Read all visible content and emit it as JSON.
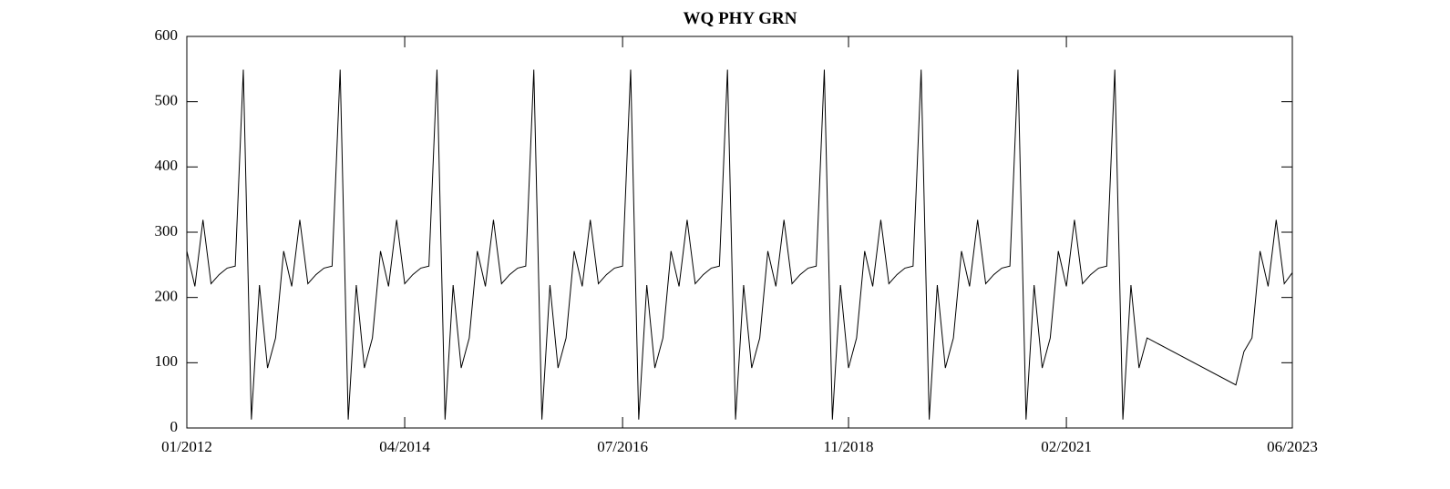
{
  "chart_data": {
    "type": "line",
    "title": "WQ PHY GRN",
    "x": [
      "2012-01",
      "2012-01",
      "2012-02",
      "2012-03",
      "2012-04",
      "2012-05",
      "2012-06",
      "2012-07",
      "2012-08",
      "2012-09",
      "2012-10",
      "2012-11",
      "2012-12",
      "2013-01",
      "2013-02",
      "2013-03",
      "2013-04",
      "2013-05",
      "2013-06",
      "2013-07",
      "2013-08",
      "2013-09",
      "2013-10",
      "2013-11",
      "2013-12",
      "2014-01",
      "2014-02",
      "2014-03",
      "2014-04",
      "2014-05",
      "2014-06",
      "2014-07",
      "2014-08",
      "2014-09",
      "2014-10",
      "2014-11",
      "2014-12",
      "2015-01",
      "2015-02",
      "2015-03",
      "2015-04",
      "2015-05",
      "2015-06",
      "2015-07",
      "2015-08",
      "2015-09",
      "2015-10",
      "2015-11",
      "2015-12",
      "2016-01",
      "2016-02",
      "2016-03",
      "2016-04",
      "2016-05",
      "2016-06",
      "2016-07",
      "2016-08",
      "2016-09",
      "2016-10",
      "2016-11",
      "2016-12",
      "2017-01",
      "2017-02",
      "2017-03",
      "2017-04",
      "2017-05",
      "2017-06",
      "2017-07",
      "2017-08",
      "2017-09",
      "2017-10",
      "2017-11",
      "2017-12",
      "2018-01",
      "2018-02",
      "2018-03",
      "2018-04",
      "2018-05",
      "2018-06",
      "2018-07",
      "2018-08",
      "2018-09",
      "2018-10",
      "2018-11",
      "2018-12",
      "2019-01",
      "2019-02",
      "2019-03",
      "2019-04",
      "2019-05",
      "2019-06",
      "2019-07",
      "2019-08",
      "2019-09",
      "2019-10",
      "2019-11",
      "2019-12",
      "2020-01",
      "2020-02",
      "2020-03",
      "2020-04",
      "2020-05",
      "2020-06",
      "2020-07",
      "2020-08",
      "2020-09",
      "2020-10",
      "2020-11",
      "2020-12",
      "2021-01",
      "2021-02",
      "2021-03",
      "2021-04",
      "2021-05",
      "2021-06",
      "2021-07",
      "2021-08",
      "2021-09",
      "2021-10",
      "2021-11",
      "2021-12",
      "2022-11",
      "2022-12",
      "2023-01",
      "2023-02",
      "2023-03",
      "2023-04",
      "2023-05",
      "2023-06"
    ],
    "series": [
      {
        "color": "#000000",
        "values": [
          0,
          271,
          217,
          319,
          221,
          235,
          245,
          248,
          549,
          13,
          219,
          92,
          138,
          271,
          217,
          319,
          221,
          235,
          245,
          248,
          549,
          13,
          219,
          92,
          138,
          271,
          217,
          319,
          221,
          235,
          245,
          248,
          549,
          13,
          219,
          92,
          138,
          271,
          217,
          319,
          221,
          235,
          245,
          248,
          549,
          13,
          219,
          92,
          138,
          271,
          217,
          319,
          221,
          235,
          245,
          248,
          549,
          13,
          219,
          92,
          138,
          271,
          217,
          319,
          221,
          235,
          245,
          248,
          549,
          13,
          219,
          92,
          138,
          271,
          217,
          319,
          221,
          235,
          245,
          248,
          549,
          13,
          219,
          92,
          138,
          271,
          217,
          319,
          221,
          235,
          245,
          248,
          549,
          13,
          219,
          92,
          138,
          271,
          217,
          319,
          221,
          235,
          245,
          248,
          549,
          13,
          219,
          92,
          138,
          271,
          217,
          319,
          221,
          235,
          245,
          248,
          549,
          13,
          219,
          92,
          138,
          66,
          117,
          138,
          271,
          217,
          319,
          221,
          238
        ]
      }
    ],
    "xlim": [
      "2012-01",
      "2023-06"
    ],
    "xticks": [
      {
        "value": "2012-01",
        "label": "01/2012"
      },
      {
        "value": "2014-04",
        "label": "04/2014"
      },
      {
        "value": "2016-07",
        "label": "07/2016"
      },
      {
        "value": "2018-11",
        "label": "11/2018"
      },
      {
        "value": "2021-02",
        "label": "02/2021"
      },
      {
        "value": "2023-06",
        "label": "06/2023"
      }
    ],
    "ylim": [
      0,
      600
    ],
    "yticks": [
      0,
      100,
      200,
      300,
      400,
      500,
      600
    ]
  }
}
